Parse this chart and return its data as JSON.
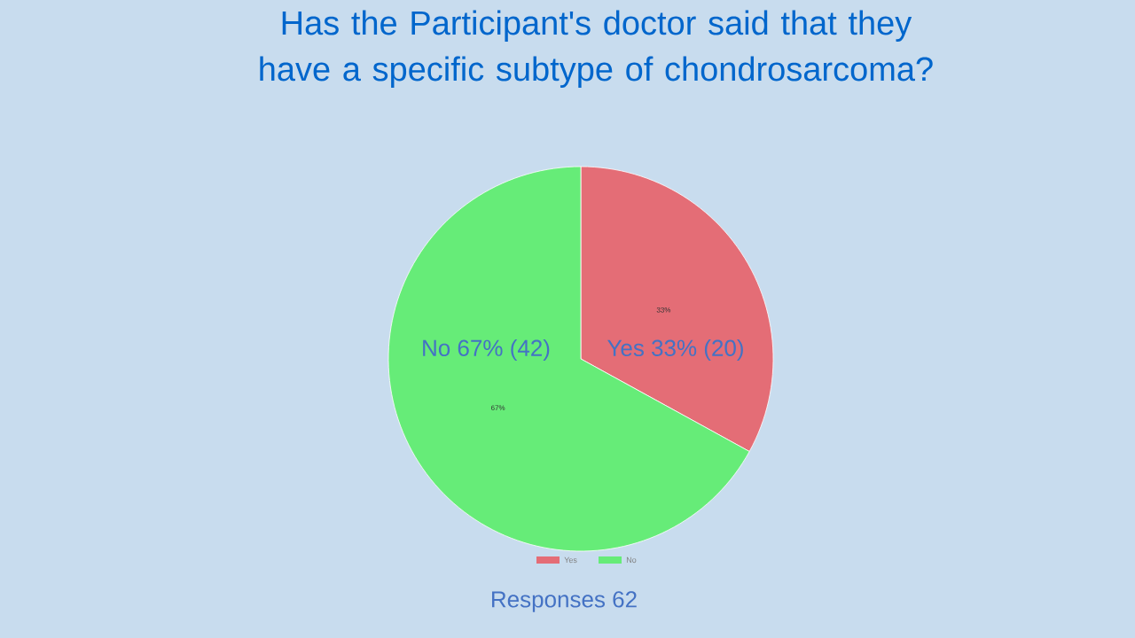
{
  "chart_data": {
    "type": "pie",
    "title": "Has the Participant's doctor said that they have a specific subtype of chondrosarcoma?",
    "categories": [
      "Yes",
      "No"
    ],
    "values": [
      33,
      67
    ],
    "value_labels": [
      "33%",
      "67%"
    ],
    "colors": [
      "#e46d76",
      "#66ec78"
    ],
    "legend": "bottom",
    "annotations": [
      "Yes 33%  (20)",
      "No 67%  (42)",
      "Responses 62"
    ]
  }
}
